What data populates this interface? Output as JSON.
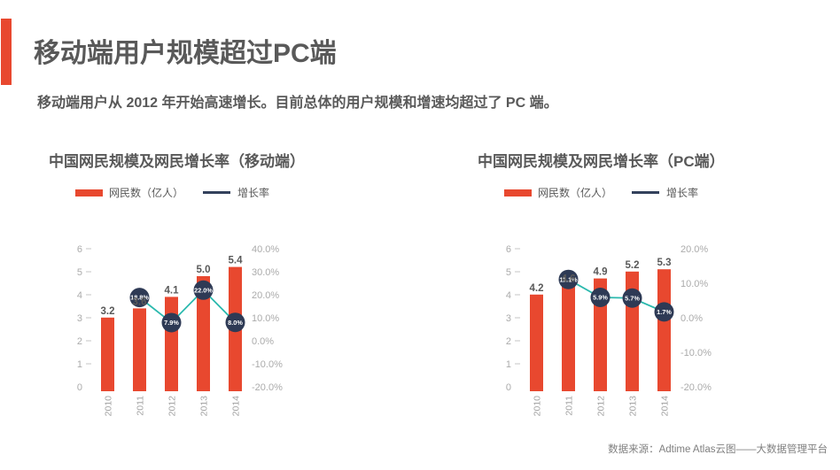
{
  "header": {
    "title": "移动端用户规模超过PC端",
    "subtitle": "移动端用户从 2012 年开始高速增长。目前总体的用户规模和增速均超过了 PC 端。"
  },
  "footer": {
    "source": "数据来源：Adtime Atlas云图——大数据管理平台"
  },
  "colors": {
    "bar": "#E8482F",
    "line": "#2BB9AE",
    "marker": "#2E3A55",
    "legend_line": "#33415C",
    "heading_text": "#595959",
    "axis_text": "#ABABAB",
    "year_text": "#A3A3A3",
    "bar_label_text": "#595959",
    "footer_text": "#7F7F7F"
  },
  "chart_data": [
    {
      "type": "bar+line",
      "title": "中国网民规模及网民增长率（移动端）",
      "categories": [
        "2010",
        "2011",
        "2012",
        "2013",
        "2014"
      ],
      "series": [
        {
          "name": "网民数（亿人）",
          "type": "bar",
          "values": [
            3.2,
            3.6,
            4.1,
            5.0,
            5.4
          ],
          "labels": [
            "3.2",
            "3.6",
            "4.1",
            "5.0",
            "5.4"
          ]
        },
        {
          "name": "增长率",
          "type": "line",
          "values": [
            null,
            18.8,
            7.9,
            22.0,
            8.0
          ],
          "labels": [
            null,
            "18.8%",
            "7.9%",
            "22.0%",
            "8.0%"
          ]
        }
      ],
      "legend": [
        {
          "label": "网民数（亿人）"
        },
        {
          "label": "增长率"
        }
      ],
      "legend_position": "top-left",
      "grid": false,
      "left_axis": {
        "min": 0,
        "max": 6,
        "ticks": [
          {
            "v": 6,
            "label": "6"
          },
          {
            "v": 5,
            "label": "5"
          },
          {
            "v": 4,
            "label": "4"
          },
          {
            "v": 3,
            "label": "3"
          },
          {
            "v": 2,
            "label": "2"
          },
          {
            "v": 1,
            "label": "1"
          },
          {
            "v": 0,
            "label": "0"
          }
        ]
      },
      "right_axis": {
        "min": -20,
        "max": 40,
        "ticks": [
          {
            "v": 40,
            "label": "40.0%"
          },
          {
            "v": 30,
            "label": "30.0%"
          },
          {
            "v": 20,
            "label": "20.0%"
          },
          {
            "v": 10,
            "label": "10.0%"
          },
          {
            "v": 0,
            "label": "0.0%"
          },
          {
            "v": -10,
            "label": "-10.0%"
          },
          {
            "v": -20,
            "label": "-20.0%"
          }
        ]
      }
    },
    {
      "type": "bar+line",
      "title": "中国网民规模及网民增长率（PC端）",
      "categories": [
        "2010",
        "2011",
        "2012",
        "2013",
        "2014"
      ],
      "series": [
        {
          "name": "网民数（亿人）",
          "type": "bar",
          "values": [
            4.2,
            4.6,
            4.9,
            5.2,
            5.3
          ],
          "labels": [
            "4.2",
            "4.6",
            "4.9",
            "5.2",
            "5.3"
          ]
        },
        {
          "name": "增长率",
          "type": "line",
          "values": [
            null,
            11.1,
            5.9,
            5.7,
            1.7
          ],
          "labels": [
            null,
            "11.1%",
            "5.9%",
            "5.7%",
            "1.7%"
          ]
        }
      ],
      "legend": [
        {
          "label": "网民数（亿人）"
        },
        {
          "label": "增长率"
        }
      ],
      "legend_position": "top-left",
      "grid": false,
      "left_axis": {
        "min": 0,
        "max": 6,
        "ticks": [
          {
            "v": 6,
            "label": "6"
          },
          {
            "v": 5,
            "label": "5"
          },
          {
            "v": 4,
            "label": "4"
          },
          {
            "v": 3,
            "label": "3"
          },
          {
            "v": 2,
            "label": "2"
          },
          {
            "v": 1,
            "label": "1"
          },
          {
            "v": 0,
            "label": "0"
          }
        ]
      },
      "right_axis": {
        "min": -20,
        "max": 20,
        "ticks": [
          {
            "v": 20,
            "label": "20.0%"
          },
          {
            "v": 10,
            "label": "10.0%"
          },
          {
            "v": 0,
            "label": "0.0%"
          },
          {
            "v": -10,
            "label": "-10.0%"
          },
          {
            "v": -20,
            "label": "-20.0%"
          }
        ]
      }
    }
  ]
}
